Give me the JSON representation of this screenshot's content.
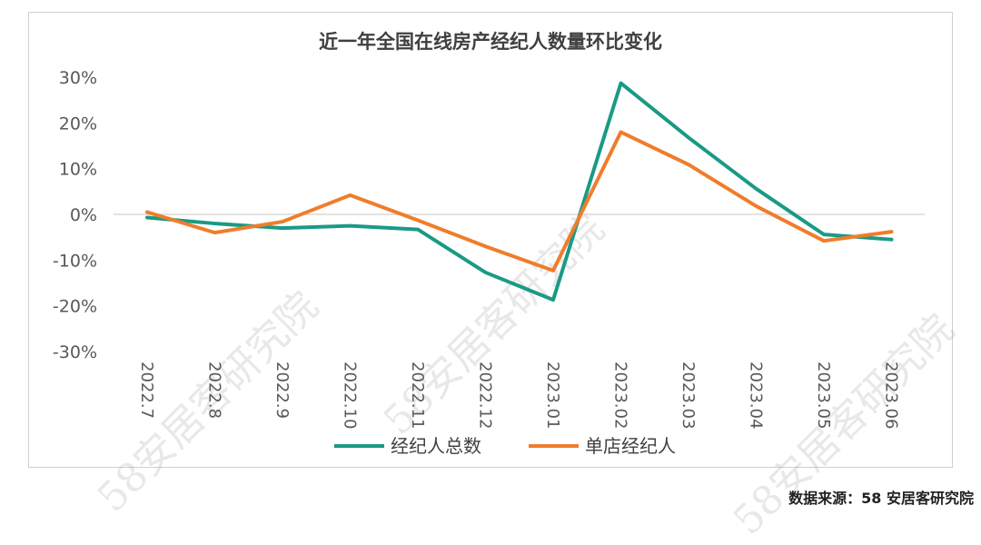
{
  "watermark": "58安居客研究院",
  "source": "数据来源：58 安居客研究院",
  "chart_data": {
    "type": "line",
    "title": "近一年全国在线房产经纪人数量环比变化",
    "categories": [
      "2022.7",
      "2022.8",
      "2022.9",
      "2022.10",
      "2022.11",
      "2022.12",
      "2023.01",
      "2023.02",
      "2023.03",
      "2023.04",
      "2023.05",
      "2023.06"
    ],
    "y_ticks": [
      "30%",
      "20%",
      "10%",
      "0%",
      "-10%",
      "-20%",
      "-30%"
    ],
    "ylim": [
      -30,
      30
    ],
    "grid": false,
    "legend_position": "bottom",
    "series": [
      {
        "name": "经纪人总数",
        "color": "#1a9a84",
        "values": [
          -0.7,
          -2.0,
          -3.0,
          -2.5,
          -3.3,
          -12.7,
          -18.7,
          28.7,
          16.8,
          5.6,
          -4.4,
          -5.5
        ]
      },
      {
        "name": "单店经纪人",
        "color": "#ef7d2c",
        "values": [
          0.5,
          -4.0,
          -1.6,
          4.2,
          -1.3,
          -7.0,
          -12.3,
          18.0,
          10.9,
          1.8,
          -5.8,
          -3.8
        ]
      }
    ]
  }
}
